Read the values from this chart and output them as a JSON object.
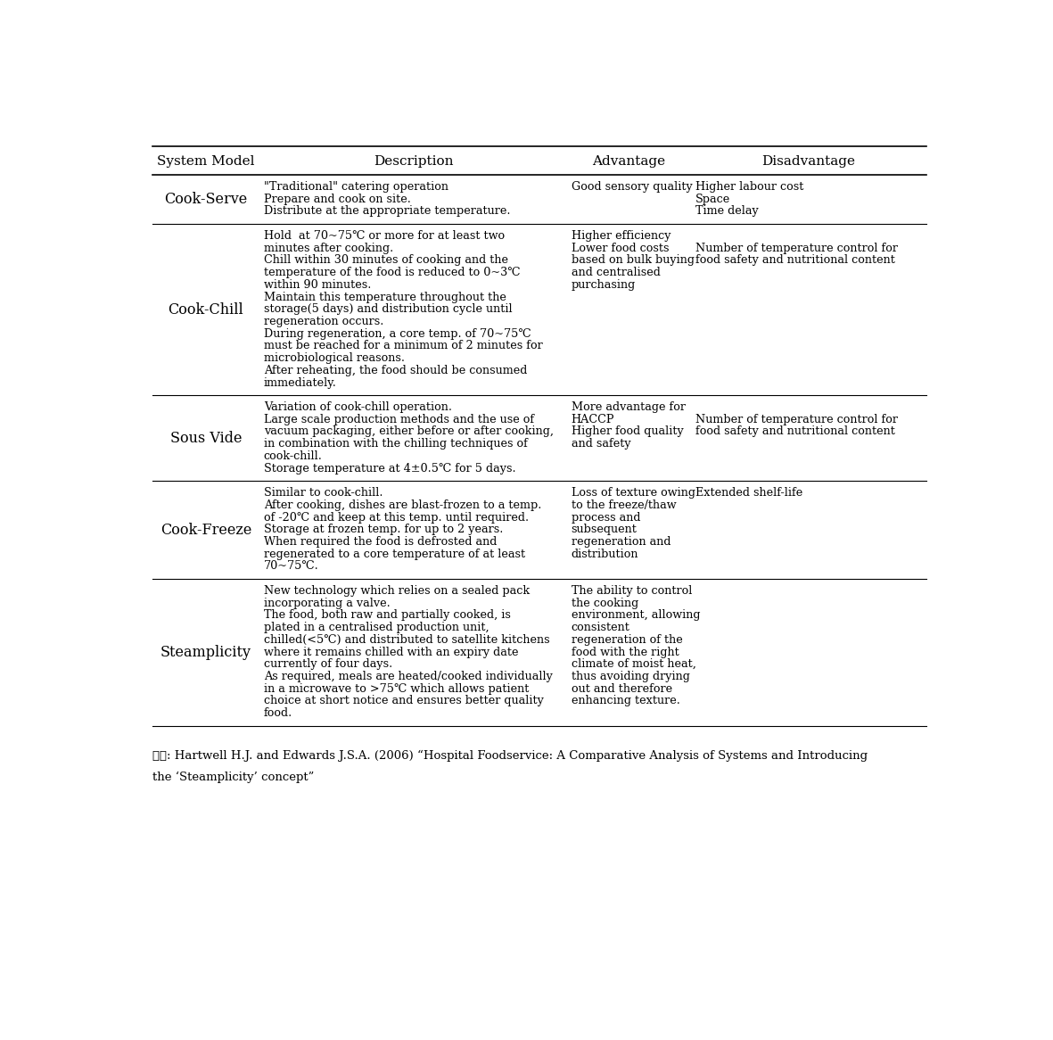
{
  "columns": [
    "System Model",
    "Description",
    "Advantage",
    "Disadvantage"
  ],
  "footer_line1": "출잘: Hartwell H.J. and Edwards J.S.A. (2006) “Hospital Foodservice: A Comparative Analysis of Systems and Introducing",
  "footer_line2": "the ‘Steamplicity’ concept”",
  "rows": [
    {
      "model": "Cook-Serve",
      "description": [
        "\"Traditional\" catering operation",
        "Prepare and cook on site.",
        "Distribute at the appropriate temperature."
      ],
      "advantage": [
        "Good sensory quality"
      ],
      "disadvantage": [
        "Higher labour cost",
        "Space",
        "Time delay"
      ]
    },
    {
      "model": "Cook-Chill",
      "description": [
        "Hold  at 70~75℃ or more for at least two",
        "minutes after cooking.",
        "Chill within 30 minutes of cooking and the",
        "temperature of the food is reduced to 0~3℃",
        "within 90 minutes.",
        "Maintain this temperature throughout the",
        "storage(5 days) and distribution cycle until",
        "regeneration occurs.",
        "During regeneration, a core temp. of 70~75℃",
        "must be reached for a minimum of 2 minutes for",
        "microbiological reasons.",
        "After reheating, the food should be consumed",
        "immediately."
      ],
      "advantage": [
        "Higher efficiency",
        "Lower food costs",
        "based on bulk buying",
        "and centralised",
        "purchasing"
      ],
      "disadvantage": [
        "",
        "Number of temperature control for",
        "food safety and nutritional content"
      ]
    },
    {
      "model": "Sous Vide",
      "description": [
        "Variation of cook-chill operation.",
        "Large scale production methods and the use of",
        "vacuum packaging, either before or after cooking,",
        "in combination with the chilling techniques of",
        "cook-chill.",
        "Storage temperature at 4±0.5℃ for 5 days."
      ],
      "advantage": [
        "More advantage for",
        "HACCP",
        "Higher food quality",
        "and safety"
      ],
      "disadvantage": [
        "",
        "Number of temperature control for",
        "food safety and nutritional content"
      ]
    },
    {
      "model": "Cook-Freeze",
      "description": [
        "Similar to cook-chill.",
        "After cooking, dishes are blast-frozen to a temp.",
        "of -20℃ and keep at this temp. until required.",
        "Storage at frozen temp. for up to 2 years.",
        "When required the food is defrosted and",
        "regenerated to a core temperature of at least",
        "70~75℃."
      ],
      "advantage": [
        "Loss of texture owing",
        "to the freeze/thaw",
        "process and",
        "subsequent",
        "regeneration and",
        "distribution"
      ],
      "disadvantage": [
        "Extended shelf-life"
      ]
    },
    {
      "model": "Steamplicity",
      "description": [
        "New technology which relies on a sealed pack",
        "incorporating a valve.",
        "The food, both raw and partially cooked, is",
        "plated in a centralised production unit,",
        "chilled(<5℃) and distributed to satellite kitchens",
        "where it remains chilled with an expiry date",
        "currently of four days.",
        "As required, meals are heated/cooked individually",
        "in a microwave to >75℃ which allows patient",
        "choice at short notice and ensures better quality",
        "food."
      ],
      "advantage": [
        "The ability to control",
        "the cooking",
        "environment, allowing",
        "consistent",
        "regeneration of the",
        "food with the right",
        "climate of moist heat,",
        "thus avoiding drying",
        "out and therefore",
        "enhancing texture."
      ],
      "disadvantage": []
    }
  ],
  "bg_color": "#ffffff",
  "text_color": "#000000",
  "line_color": "#000000",
  "header_fontsize": 11,
  "body_fontsize": 9.2,
  "footer_fontsize": 9.5
}
